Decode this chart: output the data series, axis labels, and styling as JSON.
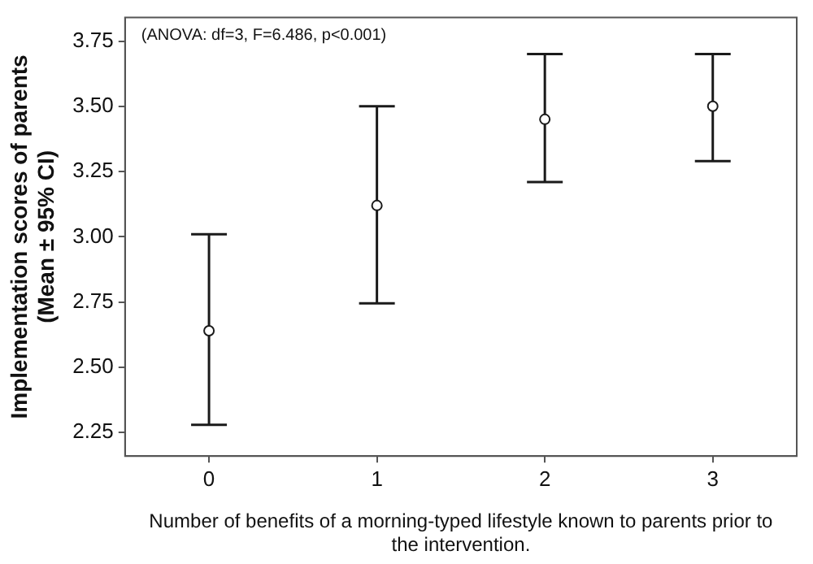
{
  "chart_data": {
    "type": "scatter",
    "xlabel": "Number of benefits of a morning-typed lifestyle known to parents prior to the intervention.",
    "ylabel": "Implementation scores of parents (Mean ± 95% CI)",
    "annotations": [
      "(ANOVA: df=3, F=6.486, p<0.001)"
    ],
    "categories": [
      "0",
      "1",
      "2",
      "3"
    ],
    "values": [
      2.64,
      3.12,
      3.45,
      3.5
    ],
    "errors": [
      [
        2.28,
        3.01
      ],
      [
        2.745,
        3.5
      ],
      [
        3.21,
        3.7
      ],
      [
        3.29,
        3.7
      ]
    ],
    "color": "#1a1a1a",
    "marker": "circle",
    "grid": false,
    "legend": false,
    "ylim": [
      2.16,
      3.84
    ],
    "yticks": [
      {
        "value": 2.25,
        "label": "2.25"
      },
      {
        "value": 2.5,
        "label": "2.50"
      },
      {
        "value": 2.75,
        "label": "2.75"
      },
      {
        "value": 3,
        "label": "3.00"
      },
      {
        "value": 3.25,
        "label": "3.25"
      },
      {
        "value": 3.5,
        "label": "3.50"
      },
      {
        "value": 3.75,
        "label": "3.75"
      }
    ]
  }
}
